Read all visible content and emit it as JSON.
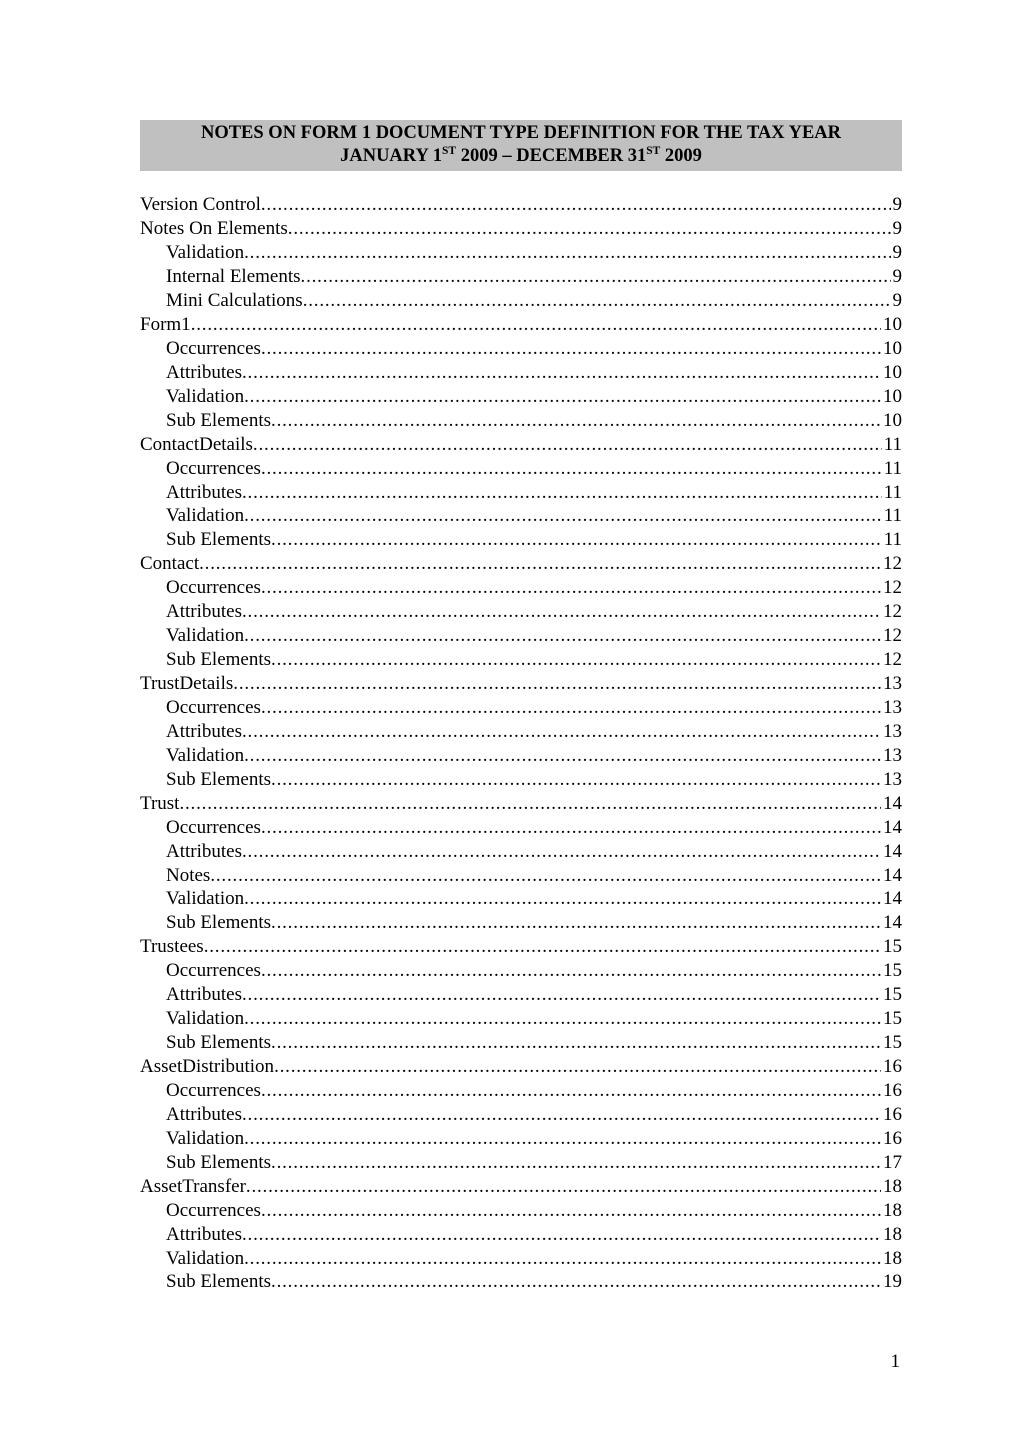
{
  "title": {
    "line1_html": "NOTES ON FORM 1 DOCUMENT TYPE DEFINITION FOR THE TAX YEAR",
    "line2_html": "JANUARY 1<sup>ST</sup> 2009 &ndash; DECEMBER 31<sup>ST</sup> 2009",
    "band_bg": "#c0c0c0",
    "font_weight": "bold",
    "font_size_pt": 14
  },
  "page_number": "1",
  "typography": {
    "font_family": "Times New Roman, serif",
    "body_font_size_pt": 14,
    "text_color": "#000000",
    "background_color": "#ffffff"
  },
  "toc": {
    "entries": [
      {
        "label": "Version Control",
        "page": "9",
        "level": 0
      },
      {
        "label": "Notes On Elements",
        "page": "9",
        "level": 0
      },
      {
        "label": "Validation",
        "page": "9",
        "level": 1
      },
      {
        "label": "Internal Elements",
        "page": "9",
        "level": 1
      },
      {
        "label": "Mini Calculations",
        "page": "9",
        "level": 1
      },
      {
        "label": "Form1",
        "page": "10",
        "level": 0
      },
      {
        "label": "Occurrences",
        "page": "10",
        "level": 1
      },
      {
        "label": "Attributes",
        "page": "10",
        "level": 1
      },
      {
        "label": "Validation",
        "page": "10",
        "level": 1
      },
      {
        "label": "Sub Elements",
        "page": "10",
        "level": 1
      },
      {
        "label": "ContactDetails",
        "page": "11",
        "level": 0
      },
      {
        "label": "Occurrences",
        "page": "11",
        "level": 1
      },
      {
        "label": "Attributes",
        "page": "11",
        "level": 1
      },
      {
        "label": "Validation",
        "page": "11",
        "level": 1
      },
      {
        "label": "Sub Elements",
        "page": "11",
        "level": 1
      },
      {
        "label": "Contact",
        "page": "12",
        "level": 0
      },
      {
        "label": "Occurrences",
        "page": "12",
        "level": 1
      },
      {
        "label": "Attributes",
        "page": "12",
        "level": 1
      },
      {
        "label": "Validation",
        "page": "12",
        "level": 1
      },
      {
        "label": "Sub Elements",
        "page": "12",
        "level": 1
      },
      {
        "label": "TrustDetails",
        "page": "13",
        "level": 0
      },
      {
        "label": "Occurrences",
        "page": "13",
        "level": 1
      },
      {
        "label": "Attributes",
        "page": "13",
        "level": 1
      },
      {
        "label": "Validation",
        "page": "13",
        "level": 1
      },
      {
        "label": "Sub Elements",
        "page": "13",
        "level": 1
      },
      {
        "label": "Trust",
        "page": "14",
        "level": 0
      },
      {
        "label": "Occurrences",
        "page": "14",
        "level": 1
      },
      {
        "label": "Attributes",
        "page": "14",
        "level": 1
      },
      {
        "label": "Notes",
        "page": "14",
        "level": 1
      },
      {
        "label": "Validation",
        "page": "14",
        "level": 1
      },
      {
        "label": "Sub Elements",
        "page": "14",
        "level": 1
      },
      {
        "label": "Trustees",
        "page": "15",
        "level": 0
      },
      {
        "label": "Occurrences",
        "page": "15",
        "level": 1
      },
      {
        "label": "Attributes",
        "page": "15",
        "level": 1
      },
      {
        "label": "Validation",
        "page": "15",
        "level": 1
      },
      {
        "label": "Sub Elements",
        "page": "15",
        "level": 1
      },
      {
        "label": "AssetDistribution",
        "page": "16",
        "level": 0
      },
      {
        "label": "Occurrences",
        "page": "16",
        "level": 1
      },
      {
        "label": "Attributes",
        "page": "16",
        "level": 1
      },
      {
        "label": "Validation",
        "page": "16",
        "level": 1
      },
      {
        "label": "Sub Elements",
        "page": "17",
        "level": 1
      },
      {
        "label": "AssetTransfer",
        "page": "18",
        "level": 0
      },
      {
        "label": "Occurrences",
        "page": "18",
        "level": 1
      },
      {
        "label": "Attributes",
        "page": "18",
        "level": 1
      },
      {
        "label": "Validation",
        "page": "18",
        "level": 1
      },
      {
        "label": "Sub Elements",
        "page": "19",
        "level": 1
      }
    ]
  }
}
